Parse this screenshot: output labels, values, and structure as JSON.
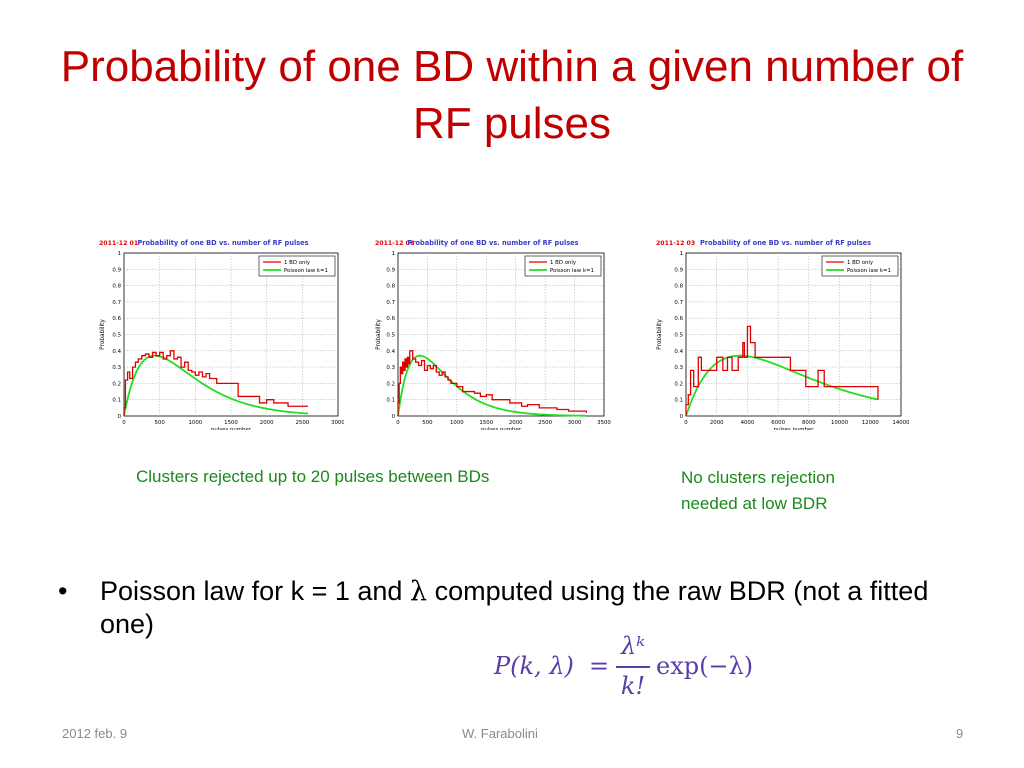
{
  "slide": {
    "title": "Probability of one BD within a given number of RF pulses",
    "caption_left": "Clusters rejected up to 20 pulses between BDs",
    "caption_right_line1": "No clusters rejection",
    "caption_right_line2": "needed at low BDR",
    "bullet_symbol": "•",
    "bullet_text_pre": "Poisson law for k = 1 and",
    "bullet_lambda": "λ",
    "bullet_text_post": "computed using the raw BDR (not a fitted one)",
    "formula": {
      "lhs": "P(k, λ)",
      "equals": "=",
      "numerator": "λᵏ",
      "denominator": "k!",
      "rhs": "exp(−λ)"
    },
    "footer_date": "2012 feb. 9",
    "footer_author": "W. Farabolini",
    "footer_page": "9"
  },
  "colors": {
    "title": "#c00000",
    "caption": "#1a8a1a",
    "formula": "#5a3ea8",
    "measured_series": "#e00000",
    "poisson_series": "#22dd22",
    "plot_title": "#3a3ac8",
    "date_tag": "#e00000"
  },
  "chart_data": [
    {
      "type": "line",
      "date_tag": "2011-12 01",
      "title": "Probability of one BD vs. number of RF pulses",
      "xlabel": "pulses number",
      "ylabel": "Probability",
      "xlim": [
        0,
        3000
      ],
      "ylim": [
        0,
        1
      ],
      "xticks": [
        0,
        500,
        1000,
        1500,
        2000,
        2500,
        3000
      ],
      "yticks": [
        0,
        0.1,
        0.2,
        0.3,
        0.4,
        0.5,
        0.6,
        0.7,
        0.8,
        0.9,
        1
      ],
      "grid": true,
      "legend_position": "top-right",
      "series": [
        {
          "name": "1 BD only",
          "style": "step",
          "x": [
            0,
            20,
            50,
            80,
            120,
            160,
            200,
            250,
            300,
            350,
            400,
            450,
            500,
            550,
            600,
            650,
            700,
            750,
            800,
            850,
            900,
            950,
            1000,
            1050,
            1100,
            1150,
            1200,
            1300,
            1350,
            1400,
            1550,
            1600,
            1700,
            1800,
            1900,
            2000,
            2100,
            2200,
            2300,
            2400,
            2500,
            2580
          ],
          "y": [
            0.05,
            0.22,
            0.27,
            0.23,
            0.3,
            0.33,
            0.35,
            0.37,
            0.38,
            0.36,
            0.39,
            0.37,
            0.39,
            0.35,
            0.37,
            0.4,
            0.35,
            0.36,
            0.3,
            0.33,
            0.28,
            0.27,
            0.25,
            0.27,
            0.24,
            0.26,
            0.23,
            0.2,
            0.2,
            0.2,
            0.2,
            0.12,
            0.12,
            0.12,
            0.08,
            0.1,
            0.08,
            0.08,
            0.06,
            0.06,
            0.06,
            0.06
          ]
        },
        {
          "name": "Poisson law k=1",
          "style": "line",
          "peak_x": 430,
          "peak_y": 0.37,
          "x_end": 2580
        }
      ]
    },
    {
      "type": "line",
      "date_tag": "2011-12 06",
      "title": "Probability of one BD vs. number of RF pulses",
      "xlabel": "pulses number",
      "ylabel": "Probability",
      "xlim": [
        0,
        3500
      ],
      "ylim": [
        0,
        1
      ],
      "xticks": [
        0,
        500,
        1000,
        1500,
        2000,
        2500,
        3000,
        3500
      ],
      "yticks": [
        0,
        0.1,
        0.2,
        0.3,
        0.4,
        0.5,
        0.6,
        0.7,
        0.8,
        0.9,
        1
      ],
      "grid": true,
      "legend_position": "top-right",
      "series": [
        {
          "name": "1 BD only",
          "style": "step",
          "x": [
            0,
            20,
            40,
            60,
            80,
            100,
            120,
            140,
            160,
            180,
            200,
            250,
            300,
            350,
            400,
            450,
            500,
            550,
            600,
            650,
            700,
            750,
            800,
            850,
            900,
            1000,
            1100,
            1200,
            1300,
            1400,
            1500,
            1600,
            1700,
            1800,
            1900,
            2000,
            2100,
            2200,
            2400,
            2500,
            2700,
            2900,
            3000,
            3200
          ],
          "y": [
            0.08,
            0.2,
            0.3,
            0.26,
            0.33,
            0.28,
            0.35,
            0.3,
            0.36,
            0.32,
            0.4,
            0.35,
            0.33,
            0.31,
            0.34,
            0.28,
            0.31,
            0.29,
            0.31,
            0.27,
            0.25,
            0.27,
            0.24,
            0.22,
            0.2,
            0.18,
            0.15,
            0.15,
            0.14,
            0.12,
            0.13,
            0.1,
            0.1,
            0.1,
            0.08,
            0.08,
            0.06,
            0.07,
            0.05,
            0.05,
            0.04,
            0.03,
            0.03,
            0.02
          ]
        },
        {
          "name": "Poisson law k=1",
          "style": "line",
          "peak_x": 370,
          "peak_y": 0.37,
          "x_end": 3200
        }
      ]
    },
    {
      "type": "line",
      "date_tag": "2011-12 03",
      "title": "Probability of one BD vs. number of RF pulses",
      "xlabel": "pulses number",
      "ylabel": "Probability",
      "xlim": [
        0,
        14000
      ],
      "ylim": [
        0,
        1
      ],
      "xticks": [
        0,
        2000,
        4000,
        6000,
        8000,
        10000,
        12000,
        14000
      ],
      "yticks": [
        0,
        0.1,
        0.2,
        0.3,
        0.4,
        0.5,
        0.6,
        0.7,
        0.8,
        0.9,
        1
      ],
      "grid": true,
      "legend_position": "top-right",
      "series": [
        {
          "name": "1 BD only",
          "style": "step",
          "x": [
            0,
            150,
            300,
            500,
            800,
            1000,
            1200,
            1600,
            2000,
            2400,
            2700,
            3000,
            3400,
            3700,
            3800,
            4000,
            4200,
            4500,
            6000,
            6800,
            7400,
            7800,
            8600,
            9000,
            9600,
            10000,
            11500,
            12500
          ],
          "y": [
            0.07,
            0.13,
            0.28,
            0.18,
            0.36,
            0.28,
            0.28,
            0.28,
            0.36,
            0.28,
            0.36,
            0.28,
            0.36,
            0.45,
            0.36,
            0.55,
            0.45,
            0.36,
            0.36,
            0.28,
            0.28,
            0.18,
            0.28,
            0.18,
            0.18,
            0.18,
            0.18,
            0.1
          ]
        },
        {
          "name": "Poisson law k=1",
          "style": "line",
          "peak_x": 3500,
          "peak_y": 0.37,
          "x_end": 12500
        }
      ]
    }
  ]
}
